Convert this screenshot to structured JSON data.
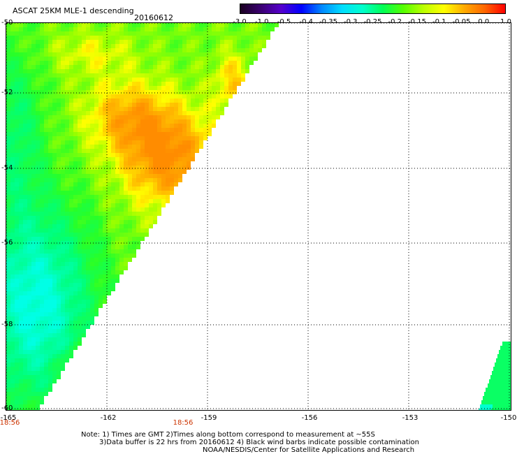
{
  "header": {
    "title": "ASCAT 25KM MLE-1 descending",
    "date": "20160612"
  },
  "colorbar": {
    "labels": [
      "-3.0",
      "-1.0",
      "-0.5",
      "-0.4",
      "-0.35",
      "-0.3",
      "-0.25",
      "-0.2",
      "-0.15",
      "-0.1",
      "-0.05",
      "0.0",
      "1.0"
    ],
    "colors": [
      "#1a0020",
      "#3a0070",
      "#5500cc",
      "#0000ff",
      "#0088ff",
      "#00ddff",
      "#00ffcc",
      "#00ff55",
      "#55ff00",
      "#bbff00",
      "#ffff00",
      "#ffaa00",
      "#ff6600",
      "#ff0000"
    ]
  },
  "axes": {
    "y_labels": [
      "-50",
      "-52",
      "-54",
      "-56",
      "-58",
      "-60"
    ],
    "x_labels": [
      "-165",
      "-162",
      "-159",
      "-156",
      "-153",
      "-150"
    ],
    "times": [
      "18:56",
      "18:56"
    ],
    "lon_range": [
      -165,
      -150
    ],
    "lat_range": [
      -60,
      -50
    ]
  },
  "footer": {
    "note1": "Note: 1) Times are GMT 2)Times along bottom correspond to measurement at ~55S",
    "note2": "3)Data buffer is 22 hrs from 20160612 4) Black wind barbs indicate possible contamination",
    "credit": "NOAA/NESDIS/Center for Satellite Applications and Research"
  }
}
